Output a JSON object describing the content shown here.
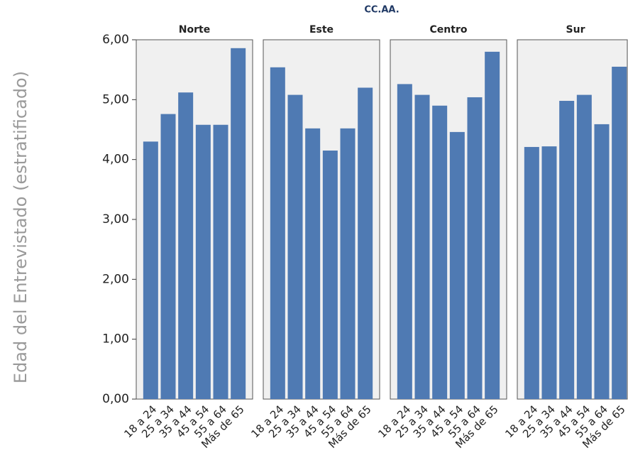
{
  "chart_data": {
    "type": "bar",
    "title": "CC.AA.",
    "ylabel": "Edad del Entrevistado (estratificado)",
    "categories": [
      "18 a 24",
      "25 a 34",
      "35 a 44",
      "45 a 54",
      "55 a 64",
      "Más de 65"
    ],
    "series": [
      {
        "name": "Norte",
        "color": "#4f7ab3",
        "values": [
          4.3,
          4.76,
          5.12,
          4.58,
          4.58,
          5.86
        ]
      },
      {
        "name": "Este",
        "color": "#4f7ab3",
        "values": [
          5.54,
          5.08,
          4.52,
          4.15,
          4.52,
          5.2
        ]
      },
      {
        "name": "Centro",
        "color": "#4f7ab3",
        "values": [
          5.26,
          5.08,
          4.9,
          4.46,
          5.04,
          5.8
        ]
      },
      {
        "name": "Sur",
        "color": "#4f7ab3",
        "values": [
          4.21,
          4.22,
          4.98,
          5.08,
          4.59,
          5.55
        ]
      }
    ],
    "ylim": [
      0,
      6
    ],
    "yticks": [
      {
        "value": 0,
        "label": "0,00"
      },
      {
        "value": 1,
        "label": "1,00"
      },
      {
        "value": 2,
        "label": "2,00"
      },
      {
        "value": 3,
        "label": "3,00"
      },
      {
        "value": 4,
        "label": "4,00"
      },
      {
        "value": 5,
        "label": "5,00"
      },
      {
        "value": 6,
        "label": "6,00"
      }
    ]
  }
}
